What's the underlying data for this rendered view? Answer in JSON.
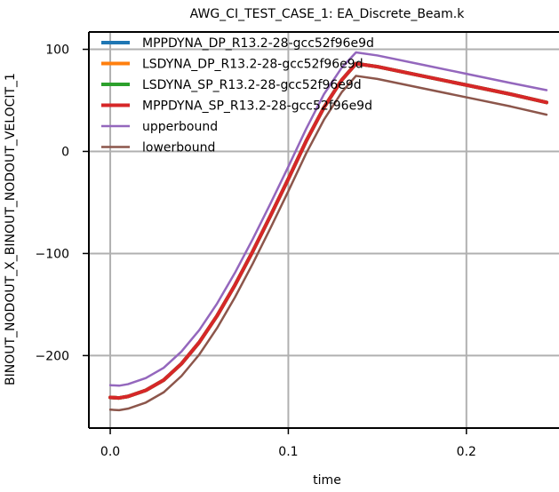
{
  "chart_data": {
    "type": "line",
    "title": "AWG_CI_TEST_CASE_1: EA_Discrete_Beam.k",
    "xlabel": "time",
    "ylabel": "BINOUT_NODOUT_X_BINOUT_NODOUT_VELOCIT_1",
    "xlim": [
      -0.012,
      0.252
    ],
    "ylim": [
      -271,
      117
    ],
    "xticks": [
      0.0,
      0.1,
      0.2
    ],
    "xtick_labels": [
      "0.0",
      "0.1",
      "0.2"
    ],
    "yticks": [
      100,
      0,
      -100,
      -200
    ],
    "ytick_labels": [
      "100",
      "0",
      "−100",
      "−200"
    ],
    "grid": true,
    "legend_position": "top-left",
    "series": [
      {
        "name": "MPPDYNA_DP_R13.2-28-gcc52f96e9d",
        "color": "#1f77b4",
        "x": [
          0.0,
          0.005,
          0.01,
          0.02,
          0.03,
          0.04,
          0.05,
          0.06,
          0.07,
          0.08,
          0.09,
          0.1,
          0.11,
          0.12,
          0.13,
          0.138,
          0.15,
          0.175,
          0.2,
          0.225,
          0.245
        ],
        "y": [
          -241,
          -241.5,
          -240,
          -234,
          -224,
          -208,
          -187,
          -161,
          -131,
          -98,
          -63,
          -27,
          10,
          43,
          70,
          86,
          83,
          74,
          65,
          56,
          48
        ]
      },
      {
        "name": "LSDYNA_DP_R13.2-28-gcc52f96e9d",
        "color": "#ff7f0e",
        "x": [
          0.0,
          0.005,
          0.01,
          0.02,
          0.03,
          0.04,
          0.05,
          0.06,
          0.07,
          0.08,
          0.09,
          0.1,
          0.11,
          0.12,
          0.13,
          0.138,
          0.15,
          0.175,
          0.2,
          0.225,
          0.245
        ],
        "y": [
          -241,
          -241.5,
          -240,
          -234,
          -224,
          -208,
          -187,
          -161,
          -131,
          -98,
          -63,
          -27,
          10,
          43,
          70,
          86,
          83,
          74,
          65,
          56,
          48
        ]
      },
      {
        "name": "LSDYNA_SP_R13.2-28-gcc52f96e9d",
        "color": "#2ca02c",
        "x": [
          0.0,
          0.005,
          0.01,
          0.02,
          0.03,
          0.04,
          0.05,
          0.06,
          0.07,
          0.08,
          0.09,
          0.1,
          0.11,
          0.12,
          0.13,
          0.138,
          0.15,
          0.175,
          0.2,
          0.225,
          0.245
        ],
        "y": [
          -241,
          -241.5,
          -240,
          -234,
          -224,
          -208,
          -187,
          -161,
          -131,
          -98,
          -63,
          -27,
          10,
          43,
          70,
          86,
          83,
          74,
          65,
          56,
          48
        ]
      },
      {
        "name": "MPPDYNA_SP_R13.2-28-gcc52f96e9d",
        "color": "#d62728",
        "x": [
          0.0,
          0.005,
          0.01,
          0.02,
          0.03,
          0.04,
          0.05,
          0.06,
          0.07,
          0.08,
          0.09,
          0.1,
          0.11,
          0.12,
          0.13,
          0.138,
          0.15,
          0.175,
          0.2,
          0.225,
          0.245
        ],
        "y": [
          -241,
          -241.5,
          -240,
          -234,
          -224,
          -208,
          -187,
          -161,
          -131,
          -98,
          -63,
          -27,
          10,
          43,
          70,
          86,
          83,
          74,
          65,
          56,
          48
        ]
      },
      {
        "name": "upperbound",
        "color": "#9467bd",
        "x": [
          0.0,
          0.005,
          0.01,
          0.02,
          0.03,
          0.04,
          0.05,
          0.06,
          0.07,
          0.08,
          0.09,
          0.1,
          0.11,
          0.12,
          0.13,
          0.138,
          0.15,
          0.175,
          0.2,
          0.225,
          0.245
        ],
        "y": [
          -229,
          -229.5,
          -228,
          -222,
          -212,
          -196,
          -175,
          -149,
          -119,
          -86,
          -51,
          -15,
          22,
          56,
          82,
          97,
          94,
          85,
          76,
          67,
          60
        ]
      },
      {
        "name": "lowerbound",
        "color": "#8c564b",
        "x": [
          0.0,
          0.005,
          0.01,
          0.02,
          0.03,
          0.04,
          0.05,
          0.06,
          0.07,
          0.08,
          0.09,
          0.1,
          0.11,
          0.12,
          0.13,
          0.138,
          0.15,
          0.175,
          0.2,
          0.225,
          0.245
        ],
        "y": [
          -253,
          -253.5,
          -252,
          -246,
          -236,
          -220,
          -199,
          -173,
          -143,
          -110,
          -75,
          -39,
          -2,
          31,
          58,
          74,
          71,
          62,
          53,
          44,
          36
        ]
      }
    ]
  }
}
